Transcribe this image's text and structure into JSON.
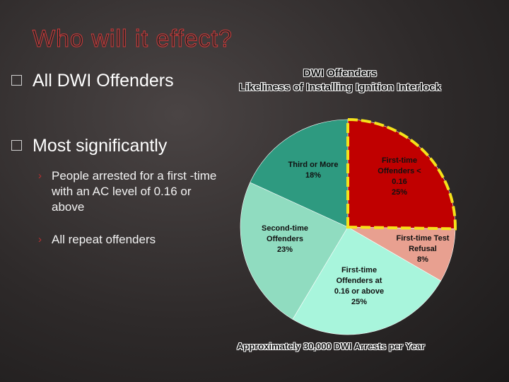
{
  "slide": {
    "title": "Who will it effect?",
    "bullets": [
      {
        "text": "All DWI Offenders"
      },
      {
        "text": "Most significantly"
      }
    ],
    "subbullets": [
      {
        "arrow": "›",
        "text": "People arrested for a first -time with an AC level of 0.16 or above"
      },
      {
        "arrow": "›",
        "text": "All repeat offenders"
      }
    ]
  },
  "chart_data": {
    "type": "pie",
    "title": "DWI Offenders",
    "subtitle": "Likeliness of Installing Ignition Interlock",
    "footnote": "Approximately 30,000 DWI Arrests per Year",
    "slices": [
      {
        "lines": [
          "First-time",
          "Offenders <",
          "0.16",
          "25%"
        ],
        "value": 25,
        "color": "#c00000",
        "highlighted": true
      },
      {
        "lines": [
          "First-time Test",
          "Refusal",
          "8%"
        ],
        "value": 8,
        "color": "#e8a090",
        "highlighted": false
      },
      {
        "lines": [
          "First-time",
          "Offenders at",
          "0.16 or above",
          "25%"
        ],
        "value": 25,
        "color": "#a8f5dc",
        "highlighted": false
      },
      {
        "lines": [
          "Second-time",
          "Offenders",
          "23%"
        ],
        "value": 23,
        "color": "#90dcc0",
        "highlighted": false
      },
      {
        "lines": [
          "Third or More",
          "18%"
        ],
        "value": 18,
        "color": "#2e9a80",
        "highlighted": false
      }
    ],
    "start_angle_deg": 0,
    "direction": "clockwise",
    "highlight_color": "#f5e21a"
  }
}
